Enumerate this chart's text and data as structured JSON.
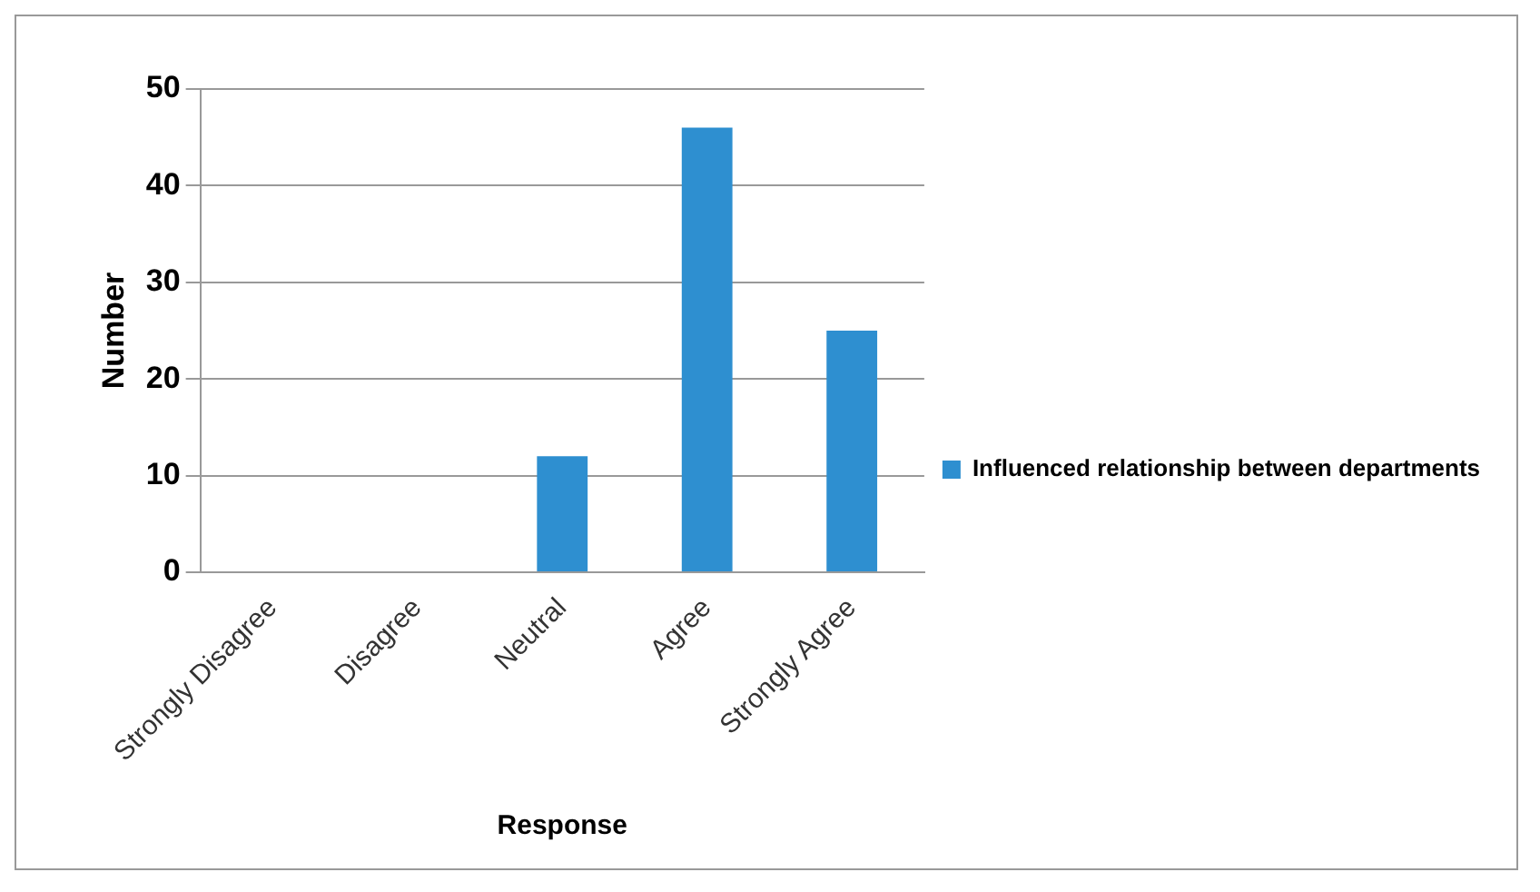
{
  "chart_data": {
    "type": "bar",
    "xlabel": "Response",
    "ylabel": "Number",
    "categories": [
      "Strongly Disagree",
      "Disagree",
      "Neutral",
      "Agree",
      "Strongly Agree"
    ],
    "series": [
      {
        "name": "Influenced relationship between departments",
        "color": "#2e8fd0",
        "values": [
          0,
          0,
          12,
          46,
          25
        ]
      }
    ],
    "ylim": [
      0,
      50
    ],
    "yticks": [
      0,
      10,
      20,
      30,
      40,
      50
    ],
    "grid": "y",
    "legend": "right"
  }
}
